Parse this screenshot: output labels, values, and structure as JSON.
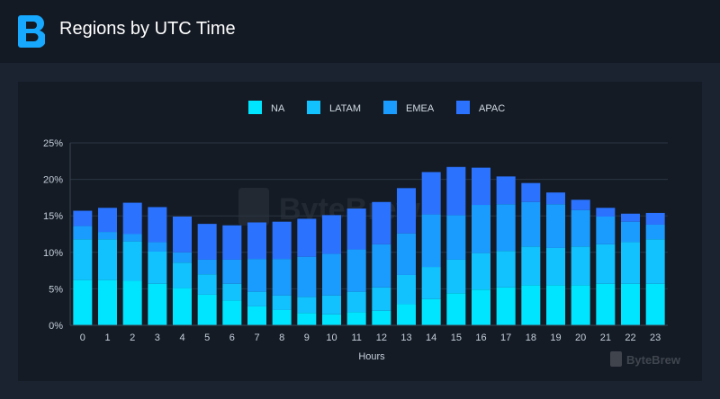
{
  "header": {
    "title": "Regions by UTC Time",
    "logo_icon": "bytebrew-logo-icon"
  },
  "watermark": {
    "text": "ByteBrew",
    "corner_text": "ByteBrew"
  },
  "colors": {
    "NA": "#00e5ff",
    "LATAM": "#12c2ff",
    "EMEA": "#1a9cff",
    "APAC": "#2b73ff"
  },
  "chart_data": {
    "type": "bar",
    "stacked": true,
    "xlabel": "Hours",
    "ylabel": "",
    "ylim": [
      0,
      25
    ],
    "yticks": [
      "0%",
      "5%",
      "10%",
      "15%",
      "20%",
      "25%"
    ],
    "grid": true,
    "legend_position": "top-center",
    "categories": [
      "0",
      "1",
      "2",
      "3",
      "4",
      "5",
      "6",
      "7",
      "8",
      "9",
      "10",
      "11",
      "12",
      "13",
      "14",
      "15",
      "16",
      "17",
      "18",
      "19",
      "20",
      "21",
      "22",
      "23"
    ],
    "series": [
      {
        "name": "NA",
        "values": [
          6.2,
          6.2,
          6.1,
          5.7,
          5.1,
          4.2,
          3.4,
          2.6,
          2.1,
          1.7,
          1.5,
          1.8,
          2.0,
          2.9,
          3.6,
          4.4,
          4.9,
          5.2,
          5.5,
          5.5,
          5.5,
          5.7,
          5.7,
          5.7
        ]
      },
      {
        "name": "LATAM",
        "values": [
          5.6,
          5.6,
          5.4,
          4.4,
          3.5,
          2.8,
          2.3,
          2.0,
          2.0,
          2.2,
          2.6,
          2.8,
          3.2,
          4.0,
          4.4,
          4.6,
          5.0,
          5.0,
          5.3,
          5.1,
          5.3,
          5.4,
          5.7,
          6.1
        ]
      },
      {
        "name": "EMEA",
        "values": [
          1.8,
          1.0,
          1.0,
          1.3,
          1.4,
          2.0,
          3.3,
          4.5,
          5.0,
          5.5,
          5.7,
          5.8,
          5.9,
          5.7,
          7.2,
          6.1,
          6.6,
          6.4,
          6.1,
          6.0,
          5.0,
          3.8,
          2.8,
          2.0
        ]
      },
      {
        "name": "APAC",
        "values": [
          2.1,
          3.3,
          4.3,
          4.8,
          4.9,
          4.9,
          4.7,
          5.0,
          5.1,
          5.2,
          5.3,
          5.6,
          5.8,
          6.2,
          5.8,
          6.6,
          5.1,
          3.8,
          2.6,
          1.6,
          1.4,
          1.2,
          1.1,
          1.6
        ]
      }
    ]
  }
}
